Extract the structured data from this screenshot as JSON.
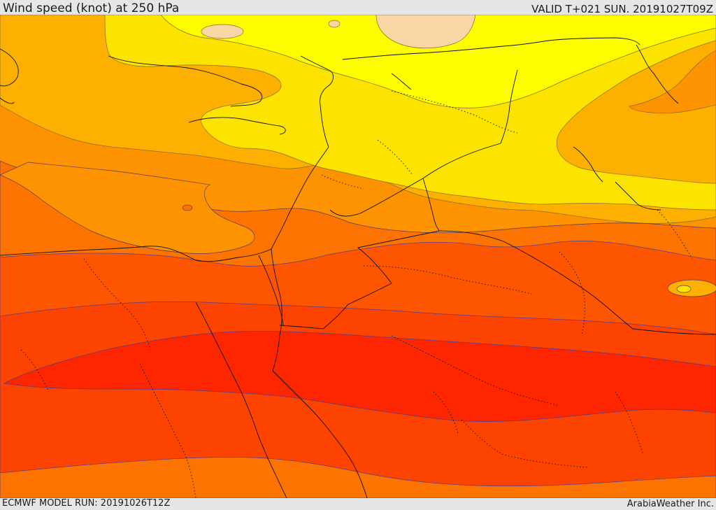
{
  "header": {
    "title": "Wind speed (knot) at 250 hPa",
    "valid": "VALID T+021 SUN. 20191027T09Z"
  },
  "footer": {
    "model_run": "ECMWF MODEL RUN: 20191026T12Z",
    "credit": "ArabiaWeather Inc."
  },
  "map": {
    "field": "wind speed",
    "level": "250 hPa",
    "palette": {
      "peach": "#fbd6a5",
      "yellow": "#fdfd00",
      "light_gold": "#fde300",
      "gold": "#fdc700",
      "amber": "#fdb000",
      "orange": "#fd9300",
      "dark_orange": "#fd7300",
      "red_orange": "#fd5500",
      "orange_red": "#fd4300",
      "red": "#fd2600"
    }
  }
}
